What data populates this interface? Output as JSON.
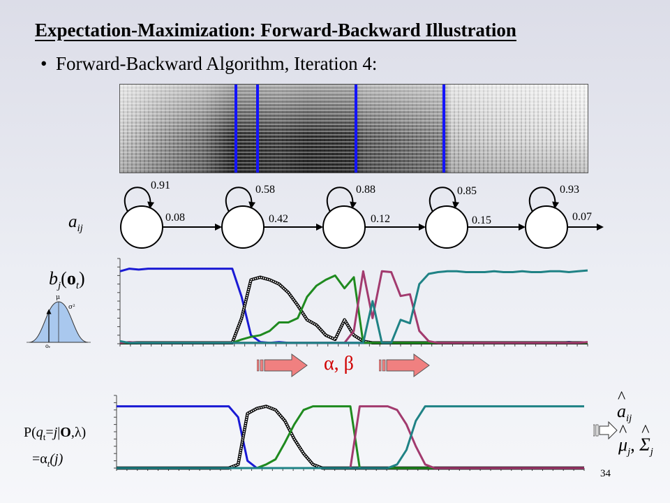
{
  "title": "Expectation-Maximization: Forward-Backward Illustration",
  "bullet": "Forward-Backward Algorithm, Iteration 4:",
  "aij_label": {
    "base": "a",
    "sub": "ij"
  },
  "bj_label": {
    "b": "b",
    "j": "j",
    "o": "o",
    "t": "t"
  },
  "gaussian_labels": {
    "mu": "μ",
    "sigma2": "σ²",
    "ot": "o",
    "ot_sub": "t"
  },
  "alpha_beta": "α, β",
  "posterior_label_line1": "P(qt=j|O,λ)",
  "posterior_label_line2": "=αt(j)",
  "p_label": {
    "P": "P(",
    "q": "q",
    "t": "t",
    "eq": "=",
    "j": "j",
    "bar": "|",
    "O": "O",
    "comma": ",",
    "lam": "λ",
    "close": ")"
  },
  "gamma_label": {
    "eq": "=",
    "alpha": "α",
    "t": "t",
    "j": "(j)"
  },
  "updates": {
    "aij_hat": "a",
    "aij_sub": "ij",
    "mu_hat": "μ",
    "mu_sub": "j",
    "sigma_hat": "Σ",
    "sigma_sub": "j",
    "comma": ","
  },
  "self_loops": [
    "0.91",
    "0.58",
    "0.88",
    "0.85",
    "0.93"
  ],
  "transitions": [
    "0.08",
    "0.42",
    "0.12",
    "0.15",
    "0.07"
  ],
  "page_number": "34",
  "colors": {
    "blue": "#1a1ad4",
    "black": "#111111",
    "green": "#1f8a1f",
    "magenta": "#a23a6e",
    "teal": "#1f8285",
    "arrow_fill": "#f08080",
    "divider": "#1414ff"
  },
  "chart_data": [
    {
      "type": "line",
      "title": "",
      "x": [
        0,
        1,
        2,
        3,
        4,
        5,
        6,
        7,
        8,
        9,
        10,
        11,
        12,
        13,
        14,
        15,
        16,
        17,
        18,
        19,
        20,
        21,
        22,
        23,
        24,
        25,
        26,
        27,
        28,
        29,
        30,
        31,
        32,
        33,
        34,
        35,
        36,
        37,
        38,
        39,
        40,
        41,
        42,
        43,
        44,
        45,
        46,
        47,
        48,
        49,
        50
      ],
      "series": [
        {
          "color": "blue",
          "values": [
            0.85,
            0.88,
            0.87,
            0.88,
            0.88,
            0.88,
            0.88,
            0.88,
            0.88,
            0.88,
            0.88,
            0.88,
            0.88,
            0.55,
            0.1,
            0.02,
            0.01,
            0.02,
            0.01,
            0.01,
            0.01,
            0.01,
            0.01,
            0.01,
            0.01,
            0.01,
            0.01,
            0.01,
            0.01,
            0.01,
            0.01,
            0.01,
            0.01,
            0.01,
            0.01,
            0.01,
            0.01,
            0.01,
            0.01,
            0.01,
            0.01,
            0.01,
            0.01,
            0.01,
            0.01,
            0.01,
            0.01,
            0.01,
            0.02,
            0.01,
            0.01
          ]
        },
        {
          "color": "black",
          "values": [
            0.01,
            0.01,
            0.01,
            0.01,
            0.01,
            0.01,
            0.01,
            0.01,
            0.01,
            0.01,
            0.01,
            0.01,
            0.01,
            0.3,
            0.75,
            0.78,
            0.75,
            0.7,
            0.6,
            0.45,
            0.28,
            0.22,
            0.1,
            0.05,
            0.28,
            0.1,
            0.03,
            0.01,
            0.01,
            0.01,
            0.01,
            0.01,
            0.01,
            0.01,
            0.01,
            0.01,
            0.01,
            0.01,
            0.01,
            0.01,
            0.01,
            0.01,
            0.01,
            0.01,
            0.01,
            0.01,
            0.01,
            0.01,
            0.01,
            0.01,
            0.01
          ]
        },
        {
          "color": "green",
          "values": [
            0.01,
            0.01,
            0.01,
            0.01,
            0.01,
            0.01,
            0.01,
            0.01,
            0.01,
            0.01,
            0.01,
            0.01,
            0.01,
            0.05,
            0.08,
            0.1,
            0.15,
            0.25,
            0.25,
            0.3,
            0.55,
            0.68,
            0.75,
            0.8,
            0.65,
            0.78,
            0.01,
            0.01,
            0.01,
            0.01,
            0.01,
            0.01,
            0.01,
            0.01,
            0.01,
            0.01,
            0.01,
            0.01,
            0.01,
            0.01,
            0.01,
            0.01,
            0.01,
            0.01,
            0.01,
            0.01,
            0.01,
            0.01,
            0.01,
            0.01,
            0.01
          ]
        },
        {
          "color": "magenta",
          "values": [
            0.01,
            0.02,
            0.01,
            0.01,
            0.01,
            0.01,
            0.01,
            0.01,
            0.01,
            0.01,
            0.01,
            0.01,
            0.01,
            0.01,
            0.01,
            0.01,
            0.01,
            0.01,
            0.01,
            0.01,
            0.01,
            0.01,
            0.01,
            0.01,
            0.01,
            0.15,
            0.85,
            0.3,
            0.85,
            0.84,
            0.56,
            0.58,
            0.15,
            0.03,
            0.01,
            0.01,
            0.01,
            0.01,
            0.01,
            0.01,
            0.01,
            0.01,
            0.01,
            0.01,
            0.01,
            0.01,
            0.01,
            0.01,
            0.01,
            0.01,
            0.02
          ]
        },
        {
          "color": "teal",
          "values": [
            0.03,
            0.01,
            0.01,
            0.01,
            0.01,
            0.01,
            0.01,
            0.01,
            0.01,
            0.01,
            0.01,
            0.01,
            0.01,
            0.01,
            0.01,
            0.01,
            0.01,
            0.01,
            0.01,
            0.01,
            0.01,
            0.01,
            0.01,
            0.01,
            0.01,
            0.01,
            0.01,
            0.5,
            0.01,
            0.01,
            0.28,
            0.24,
            0.7,
            0.82,
            0.84,
            0.85,
            0.85,
            0.84,
            0.84,
            0.84,
            0.85,
            0.84,
            0.84,
            0.85,
            0.84,
            0.84,
            0.85,
            0.85,
            0.84,
            0.85,
            0.86
          ]
        }
      ]
    },
    {
      "type": "line",
      "title": "",
      "x": [
        0,
        1,
        2,
        3,
        4,
        5,
        6,
        7,
        8,
        9,
        10,
        11,
        12,
        13,
        14,
        15,
        16,
        17,
        18,
        19,
        20,
        21,
        22,
        23,
        24,
        25,
        26,
        27,
        28,
        29,
        30,
        31,
        32,
        33,
        34,
        35,
        36,
        37,
        38,
        39,
        40,
        41,
        42,
        43,
        44,
        45,
        46,
        47,
        48,
        49,
        50
      ],
      "series": [
        {
          "color": "blue",
          "values": [
            0.85,
            0.85,
            0.85,
            0.85,
            0.85,
            0.85,
            0.85,
            0.85,
            0.85,
            0.85,
            0.85,
            0.85,
            0.85,
            0.7,
            0.1,
            0.0,
            0.0,
            0.0,
            0.0,
            0.0,
            0.0,
            0.0,
            0.0,
            0.0,
            0.0,
            0.0,
            0.0,
            0.0,
            0.0,
            0.0,
            0.0,
            0.0,
            0.0,
            0.0,
            0.0,
            0.0,
            0.0,
            0.0,
            0.0,
            0.0,
            0.0,
            0.0,
            0.0,
            0.0,
            0.0,
            0.0,
            0.0,
            0.0,
            0.0,
            0.0,
            0.0
          ]
        },
        {
          "color": "black",
          "values": [
            0.0,
            0.0,
            0.0,
            0.0,
            0.0,
            0.0,
            0.0,
            0.0,
            0.0,
            0.0,
            0.0,
            0.0,
            0.0,
            0.05,
            0.75,
            0.82,
            0.85,
            0.8,
            0.65,
            0.4,
            0.2,
            0.05,
            0.0,
            0.0,
            0.0,
            0.0,
            0.0,
            0.0,
            0.0,
            0.0,
            0.0,
            0.0,
            0.0,
            0.0,
            0.0,
            0.0,
            0.0,
            0.0,
            0.0,
            0.0,
            0.0,
            0.0,
            0.0,
            0.0,
            0.0,
            0.0,
            0.0,
            0.0,
            0.0,
            0.0,
            0.0
          ]
        },
        {
          "color": "green",
          "values": [
            0.0,
            0.0,
            0.0,
            0.0,
            0.0,
            0.0,
            0.0,
            0.0,
            0.0,
            0.0,
            0.0,
            0.0,
            0.0,
            0.0,
            0.0,
            0.0,
            0.05,
            0.12,
            0.35,
            0.6,
            0.8,
            0.85,
            0.85,
            0.85,
            0.85,
            0.85,
            0.0,
            0.0,
            0.0,
            0.0,
            0.0,
            0.0,
            0.0,
            0.0,
            0.0,
            0.0,
            0.0,
            0.0,
            0.0,
            0.0,
            0.0,
            0.0,
            0.0,
            0.0,
            0.0,
            0.0,
            0.0,
            0.0,
            0.0,
            0.0,
            0.0
          ]
        },
        {
          "color": "magenta",
          "values": [
            0.0,
            0.0,
            0.0,
            0.0,
            0.0,
            0.0,
            0.0,
            0.0,
            0.0,
            0.0,
            0.0,
            0.0,
            0.0,
            0.0,
            0.0,
            0.0,
            0.0,
            0.0,
            0.0,
            0.0,
            0.0,
            0.0,
            0.0,
            0.0,
            0.0,
            0.0,
            0.85,
            0.85,
            0.85,
            0.85,
            0.8,
            0.6,
            0.3,
            0.05,
            0.0,
            0.0,
            0.0,
            0.0,
            0.0,
            0.0,
            0.0,
            0.0,
            0.0,
            0.0,
            0.0,
            0.0,
            0.0,
            0.0,
            0.0,
            0.0,
            0.0
          ]
        },
        {
          "color": "teal",
          "values": [
            0.0,
            0.0,
            0.0,
            0.0,
            0.0,
            0.0,
            0.0,
            0.0,
            0.0,
            0.0,
            0.0,
            0.0,
            0.0,
            0.0,
            0.0,
            0.0,
            0.0,
            0.0,
            0.0,
            0.0,
            0.0,
            0.0,
            0.0,
            0.0,
            0.0,
            0.0,
            0.0,
            0.0,
            0.0,
            0.0,
            0.05,
            0.25,
            0.65,
            0.85,
            0.85,
            0.85,
            0.85,
            0.85,
            0.85,
            0.85,
            0.85,
            0.85,
            0.85,
            0.85,
            0.85,
            0.85,
            0.85,
            0.85,
            0.85,
            0.85,
            0.85
          ]
        }
      ]
    }
  ]
}
